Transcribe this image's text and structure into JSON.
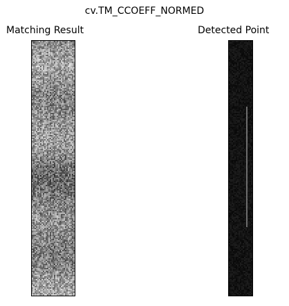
{
  "figure": {
    "title": "cv.TM_CCOEFF_NORMED"
  },
  "panels": [
    {
      "title": "Matching Result",
      "colormap": "gray",
      "background": "#8a8a8a"
    },
    {
      "title": "Detected Point",
      "colormap": "gray",
      "background": "#060606",
      "line_color": "#6e6e6e"
    }
  ]
}
